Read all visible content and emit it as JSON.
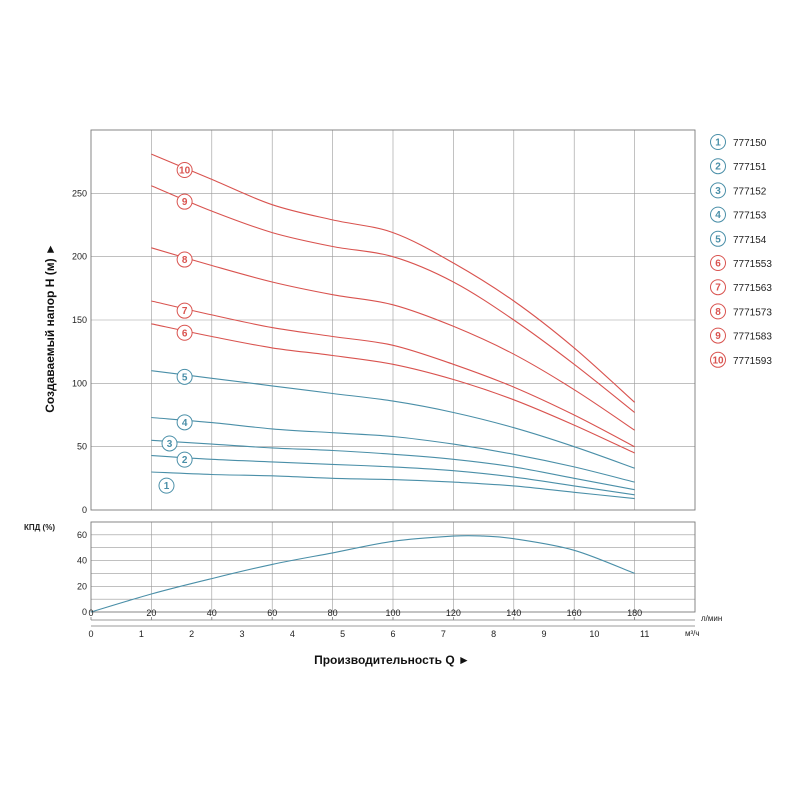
{
  "chart_data": {
    "type": "line",
    "head_chart": {
      "ylabel": "Создаваемый напор H (м) ►",
      "ylim": [
        0,
        300
      ],
      "yticks": [
        0,
        50,
        100,
        150,
        200,
        250
      ],
      "xlim": [
        0,
        200
      ],
      "grid": true,
      "series": [
        {
          "name": "777150",
          "marker": "1",
          "color": "#4a8fa8",
          "x": [
            20,
            40,
            60,
            80,
            100,
            120,
            140,
            160,
            180
          ],
          "values": [
            30,
            28,
            27,
            25,
            24,
            22,
            19,
            14,
            9
          ]
        },
        {
          "name": "777151",
          "marker": "2",
          "color": "#4a8fa8",
          "x": [
            20,
            40,
            60,
            80,
            100,
            120,
            140,
            160,
            180
          ],
          "values": [
            43,
            40,
            38,
            36,
            34,
            31,
            26,
            19,
            12
          ]
        },
        {
          "name": "777152",
          "marker": "3",
          "color": "#4a8fa8",
          "x": [
            20,
            40,
            60,
            80,
            100,
            120,
            140,
            160,
            180
          ],
          "values": [
            55,
            52,
            49,
            47,
            44,
            40,
            34,
            25,
            16
          ]
        },
        {
          "name": "777153",
          "marker": "4",
          "color": "#4a8fa8",
          "x": [
            20,
            40,
            60,
            80,
            100,
            120,
            140,
            160,
            180
          ],
          "values": [
            73,
            69,
            64,
            61,
            58,
            52,
            44,
            34,
            22
          ]
        },
        {
          "name": "777154",
          "marker": "5",
          "color": "#4a8fa8",
          "x": [
            20,
            40,
            60,
            80,
            100,
            120,
            140,
            160,
            180
          ],
          "values": [
            110,
            104,
            98,
            92,
            86,
            77,
            65,
            50,
            33
          ]
        },
        {
          "name": "7771553",
          "marker": "6",
          "color": "#d9534f",
          "x": [
            20,
            40,
            60,
            80,
            100,
            120,
            140,
            160,
            180
          ],
          "values": [
            147,
            137,
            128,
            122,
            115,
            103,
            87,
            67,
            45
          ]
        },
        {
          "name": "7771563",
          "marker": "7",
          "color": "#d9534f",
          "x": [
            20,
            40,
            60,
            80,
            100,
            120,
            140,
            160,
            180
          ],
          "values": [
            165,
            154,
            144,
            137,
            130,
            115,
            97,
            75,
            50
          ]
        },
        {
          "name": "7771573",
          "marker": "8",
          "color": "#d9534f",
          "x": [
            20,
            40,
            60,
            80,
            100,
            120,
            140,
            160,
            180
          ],
          "values": [
            207,
            193,
            180,
            170,
            162,
            145,
            123,
            95,
            63
          ]
        },
        {
          "name": "7771583",
          "marker": "9",
          "color": "#d9534f",
          "x": [
            20,
            40,
            60,
            80,
            100,
            120,
            140,
            160,
            180
          ],
          "values": [
            256,
            236,
            219,
            208,
            200,
            180,
            150,
            115,
            77
          ]
        },
        {
          "name": "7771593",
          "marker": "10",
          "color": "#d9534f",
          "x": [
            20,
            40,
            60,
            80,
            100,
            120,
            140,
            160,
            180
          ],
          "values": [
            281,
            261,
            241,
            229,
            219,
            195,
            165,
            128,
            85
          ]
        }
      ]
    },
    "efficiency_chart": {
      "ylabel": "КПД (%)",
      "ylim": [
        0,
        70
      ],
      "yticks": [
        0,
        20,
        40,
        60
      ],
      "grid": true,
      "series": [
        {
          "color": "#4a8fa8",
          "x": [
            0,
            20,
            40,
            60,
            80,
            100,
            120,
            130,
            140,
            160,
            180
          ],
          "values": [
            0,
            14,
            26,
            37,
            46,
            55,
            59,
            59,
            57,
            48,
            30
          ]
        }
      ]
    },
    "x_axis_lpm": {
      "unit": "л/мин",
      "ticks": [
        0,
        20,
        40,
        60,
        80,
        100,
        120,
        140,
        160,
        180
      ],
      "range": [
        0,
        200
      ]
    },
    "x_axis_m3h": {
      "unit": "м³/ч",
      "ticks": [
        0,
        1,
        2,
        3,
        4,
        5,
        6,
        7,
        8,
        9,
        10,
        11
      ],
      "range": [
        0,
        12
      ]
    },
    "xlabel": "Производительность Q ►"
  },
  "legend": [
    {
      "num": "1",
      "code": "777150",
      "color": "#4a8fa8"
    },
    {
      "num": "2",
      "code": "777151",
      "color": "#4a8fa8"
    },
    {
      "num": "3",
      "code": "777152",
      "color": "#4a8fa8"
    },
    {
      "num": "4",
      "code": "777153",
      "color": "#4a8fa8"
    },
    {
      "num": "5",
      "code": "777154",
      "color": "#4a8fa8"
    },
    {
      "num": "6",
      "code": "7771553",
      "color": "#d9534f"
    },
    {
      "num": "7",
      "code": "7771563",
      "color": "#d9534f"
    },
    {
      "num": "8",
      "code": "7771573",
      "color": "#d9534f"
    },
    {
      "num": "9",
      "code": "7771583",
      "color": "#d9534f"
    },
    {
      "num": "10",
      "code": "7771593",
      "color": "#d9534f"
    }
  ],
  "colors": {
    "blue": "#4a8fa8",
    "red": "#d9534f",
    "grid": "#9a9a9a",
    "frame": "#7a7a7a"
  }
}
